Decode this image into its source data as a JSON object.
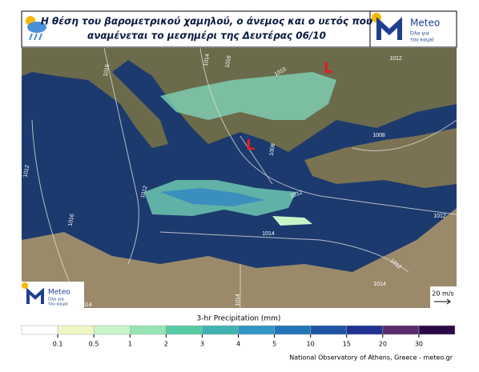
{
  "header": {
    "title_lines": [
      "Η θέση του βαρομετρικού χαμηλού, ο άνεμος και ο υετός που",
      "αναμένεται το μεσημέρι της Δευτέρας 06/10"
    ],
    "logo_name": "Meteo",
    "logo_slogan": [
      "Όλα για",
      "τον καιρό"
    ]
  },
  "map": {
    "lows": [
      "L",
      "L"
    ],
    "isobar_labels": [
      "1016",
      "1014",
      "1016",
      "1010",
      "1012",
      "1008",
      "1008",
      "1012",
      "1012",
      "1016",
      "1012",
      "1014",
      "1012",
      "1012",
      "1014",
      "1014",
      "1014"
    ],
    "wind_scale": "20 m/s"
  },
  "colorbar": {
    "title": "3-hr Precipitation (mm)",
    "ticks": [
      "0.1",
      "0.5",
      "1",
      "2",
      "3",
      "4",
      "5",
      "10",
      "15",
      "20",
      "30"
    ],
    "colors": [
      "#ffffff",
      "#eef7c4",
      "#c9f4c9",
      "#95e4b4",
      "#56cba3",
      "#3fb3b2",
      "#3194c4",
      "#2274b8",
      "#1d54a6",
      "#1f3292",
      "#5a2a6a",
      "#2a0a45"
    ]
  },
  "credit": "National Observatory of Athens, Greece - meteo.gr"
}
